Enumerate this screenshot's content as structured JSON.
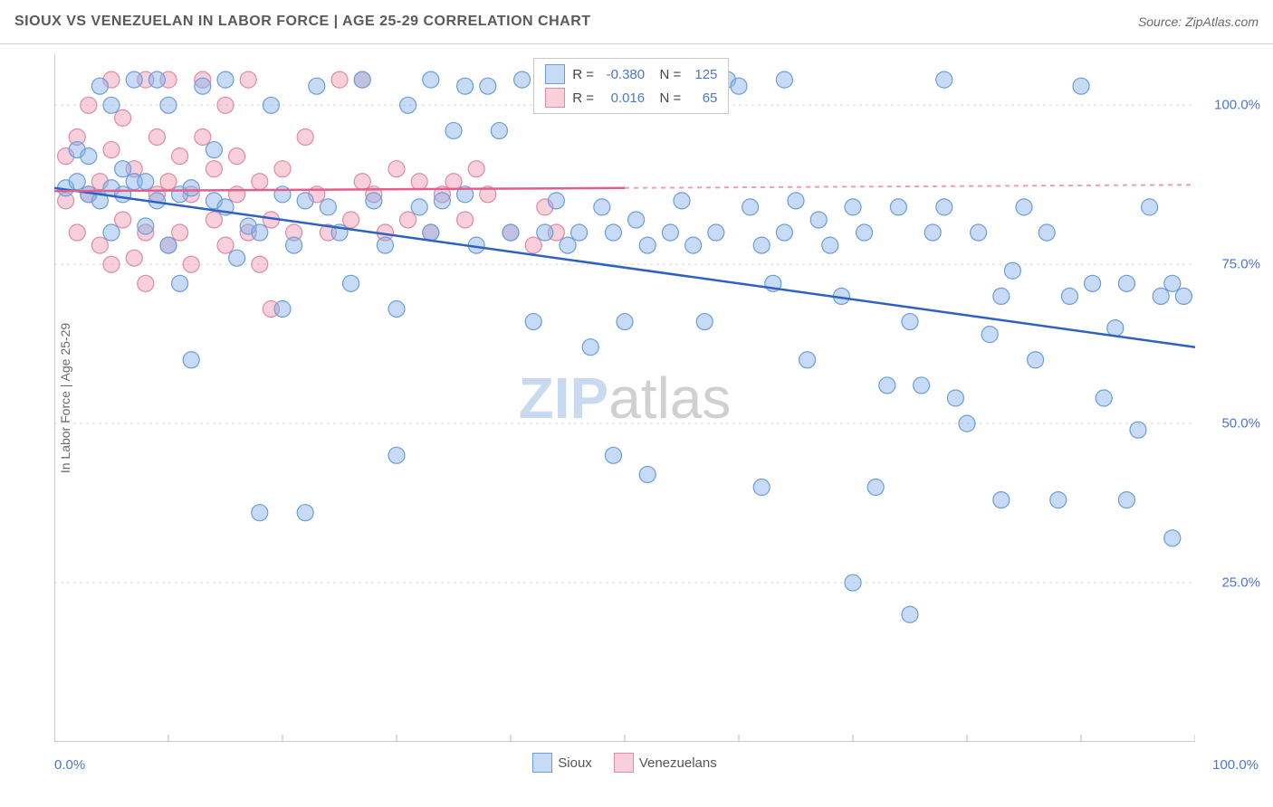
{
  "header": {
    "title": "SIOUX VS VENEZUELAN IN LABOR FORCE | AGE 25-29 CORRELATION CHART",
    "source": "Source: ZipAtlas.com"
  },
  "watermark": {
    "part1": "ZIP",
    "part2": "atlas"
  },
  "chart": {
    "type": "scatter",
    "ylabel": "In Labor Force | Age 25-29",
    "xlim": [
      0,
      100
    ],
    "ylim": [
      0,
      108
    ],
    "xtick_step": 10,
    "ytick_step": 25,
    "xlabel_min": "0.0%",
    "xlabel_max": "100.0%",
    "ytick_labels": [
      "25.0%",
      "50.0%",
      "75.0%",
      "100.0%"
    ],
    "ytick_values": [
      25,
      50,
      75,
      100
    ],
    "grid_color": "#d8d8d8",
    "axis_color": "#b8b8b8",
    "background_color": "#ffffff",
    "series": [
      {
        "name": "Sioux",
        "color_fill": "rgba(130,175,235,0.45)",
        "color_stroke": "#6a9ed8",
        "trend_color": "#2d62c4",
        "marker_radius": 9,
        "R": "-0.380",
        "N": "125",
        "trend": {
          "x1": 0,
          "y1": 87,
          "x2": 100,
          "y2": 62,
          "dash_after_x": 100
        },
        "points": [
          [
            1,
            87
          ],
          [
            2,
            88
          ],
          [
            2,
            93
          ],
          [
            3,
            86
          ],
          [
            3,
            92
          ],
          [
            4,
            85
          ],
          [
            4,
            103
          ],
          [
            5,
            87
          ],
          [
            5,
            100
          ],
          [
            5,
            80
          ],
          [
            6,
            86
          ],
          [
            6,
            90
          ],
          [
            7,
            88
          ],
          [
            7,
            104
          ],
          [
            8,
            88
          ],
          [
            8,
            81
          ],
          [
            9,
            85
          ],
          [
            9,
            104
          ],
          [
            10,
            78
          ],
          [
            10,
            100
          ],
          [
            11,
            86
          ],
          [
            11,
            72
          ],
          [
            12,
            87
          ],
          [
            12,
            60
          ],
          [
            13,
            103
          ],
          [
            14,
            85
          ],
          [
            14,
            93
          ],
          [
            15,
            84
          ],
          [
            15,
            104
          ],
          [
            16,
            76
          ],
          [
            17,
            81
          ],
          [
            18,
            80
          ],
          [
            18,
            36
          ],
          [
            19,
            100
          ],
          [
            20,
            86
          ],
          [
            20,
            68
          ],
          [
            21,
            78
          ],
          [
            22,
            85
          ],
          [
            22,
            36
          ],
          [
            23,
            103
          ],
          [
            24,
            84
          ],
          [
            25,
            80
          ],
          [
            26,
            72
          ],
          [
            27,
            104
          ],
          [
            28,
            85
          ],
          [
            29,
            78
          ],
          [
            30,
            68
          ],
          [
            30,
            45
          ],
          [
            31,
            100
          ],
          [
            32,
            84
          ],
          [
            33,
            80
          ],
          [
            33,
            104
          ],
          [
            34,
            85
          ],
          [
            35,
            96
          ],
          [
            36,
            86
          ],
          [
            36,
            103
          ],
          [
            37,
            78
          ],
          [
            38,
            103
          ],
          [
            39,
            96
          ],
          [
            40,
            80
          ],
          [
            41,
            104
          ],
          [
            42,
            66
          ],
          [
            43,
            80
          ],
          [
            44,
            85
          ],
          [
            44,
            104
          ],
          [
            45,
            78
          ],
          [
            46,
            80
          ],
          [
            47,
            62
          ],
          [
            48,
            84
          ],
          [
            49,
            80
          ],
          [
            49,
            45
          ],
          [
            50,
            66
          ],
          [
            51,
            82
          ],
          [
            52,
            78
          ],
          [
            52,
            42
          ],
          [
            53,
            103
          ],
          [
            54,
            80
          ],
          [
            55,
            85
          ],
          [
            56,
            78
          ],
          [
            57,
            66
          ],
          [
            58,
            80
          ],
          [
            59,
            104
          ],
          [
            60,
            103
          ],
          [
            61,
            84
          ],
          [
            62,
            78
          ],
          [
            62,
            40
          ],
          [
            63,
            72
          ],
          [
            64,
            80
          ],
          [
            64,
            104
          ],
          [
            65,
            85
          ],
          [
            66,
            60
          ],
          [
            67,
            82
          ],
          [
            68,
            78
          ],
          [
            69,
            70
          ],
          [
            70,
            84
          ],
          [
            70,
            25
          ],
          [
            71,
            80
          ],
          [
            72,
            40
          ],
          [
            73,
            56
          ],
          [
            74,
            84
          ],
          [
            75,
            66
          ],
          [
            75,
            20
          ],
          [
            76,
            56
          ],
          [
            77,
            80
          ],
          [
            78,
            84
          ],
          [
            78,
            104
          ],
          [
            79,
            54
          ],
          [
            80,
            50
          ],
          [
            81,
            80
          ],
          [
            82,
            64
          ],
          [
            83,
            70
          ],
          [
            83,
            38
          ],
          [
            84,
            74
          ],
          [
            85,
            84
          ],
          [
            86,
            60
          ],
          [
            87,
            80
          ],
          [
            88,
            38
          ],
          [
            89,
            70
          ],
          [
            90,
            103
          ],
          [
            91,
            72
          ],
          [
            92,
            54
          ],
          [
            93,
            65
          ],
          [
            94,
            72
          ],
          [
            94,
            38
          ],
          [
            95,
            49
          ],
          [
            96,
            84
          ],
          [
            97,
            70
          ],
          [
            98,
            72
          ],
          [
            98,
            32
          ],
          [
            99,
            70
          ]
        ]
      },
      {
        "name": "Venezuelans",
        "color_fill": "rgba(240,150,175,0.45)",
        "color_stroke": "#e08aa4",
        "trend_color": "#e45e8c",
        "marker_radius": 9,
        "R": "0.016",
        "N": "65",
        "trend": {
          "x1": 0,
          "y1": 86.5,
          "x2": 50,
          "y2": 87,
          "dash_after_x": 50
        },
        "points": [
          [
            1,
            85
          ],
          [
            1,
            92
          ],
          [
            2,
            80
          ],
          [
            2,
            95
          ],
          [
            3,
            86
          ],
          [
            3,
            100
          ],
          [
            4,
            78
          ],
          [
            4,
            88
          ],
          [
            5,
            75
          ],
          [
            5,
            93
          ],
          [
            5,
            104
          ],
          [
            6,
            82
          ],
          [
            6,
            98
          ],
          [
            7,
            76
          ],
          [
            7,
            90
          ],
          [
            8,
            80
          ],
          [
            8,
            104
          ],
          [
            8,
            72
          ],
          [
            9,
            86
          ],
          [
            9,
            95
          ],
          [
            10,
            78
          ],
          [
            10,
            88
          ],
          [
            10,
            104
          ],
          [
            11,
            92
          ],
          [
            11,
            80
          ],
          [
            12,
            86
          ],
          [
            12,
            75
          ],
          [
            13,
            95
          ],
          [
            13,
            104
          ],
          [
            14,
            82
          ],
          [
            14,
            90
          ],
          [
            15,
            78
          ],
          [
            15,
            100
          ],
          [
            16,
            86
          ],
          [
            16,
            92
          ],
          [
            17,
            80
          ],
          [
            17,
            104
          ],
          [
            18,
            75
          ],
          [
            18,
            88
          ],
          [
            19,
            82
          ],
          [
            19,
            68
          ],
          [
            20,
            90
          ],
          [
            21,
            80
          ],
          [
            22,
            95
          ],
          [
            23,
            86
          ],
          [
            24,
            80
          ],
          [
            25,
            104
          ],
          [
            26,
            82
          ],
          [
            27,
            88
          ],
          [
            27,
            104
          ],
          [
            28,
            86
          ],
          [
            29,
            80
          ],
          [
            30,
            90
          ],
          [
            31,
            82
          ],
          [
            32,
            88
          ],
          [
            33,
            80
          ],
          [
            34,
            86
          ],
          [
            35,
            88
          ],
          [
            36,
            82
          ],
          [
            37,
            90
          ],
          [
            38,
            86
          ],
          [
            40,
            80
          ],
          [
            42,
            78
          ],
          [
            43,
            84
          ],
          [
            44,
            80
          ]
        ]
      }
    ]
  },
  "legend_top": {
    "r_label": "R =",
    "n_label": "N ="
  },
  "legend_bottom": {
    "items": [
      "Sioux",
      "Venezuelans"
    ]
  }
}
